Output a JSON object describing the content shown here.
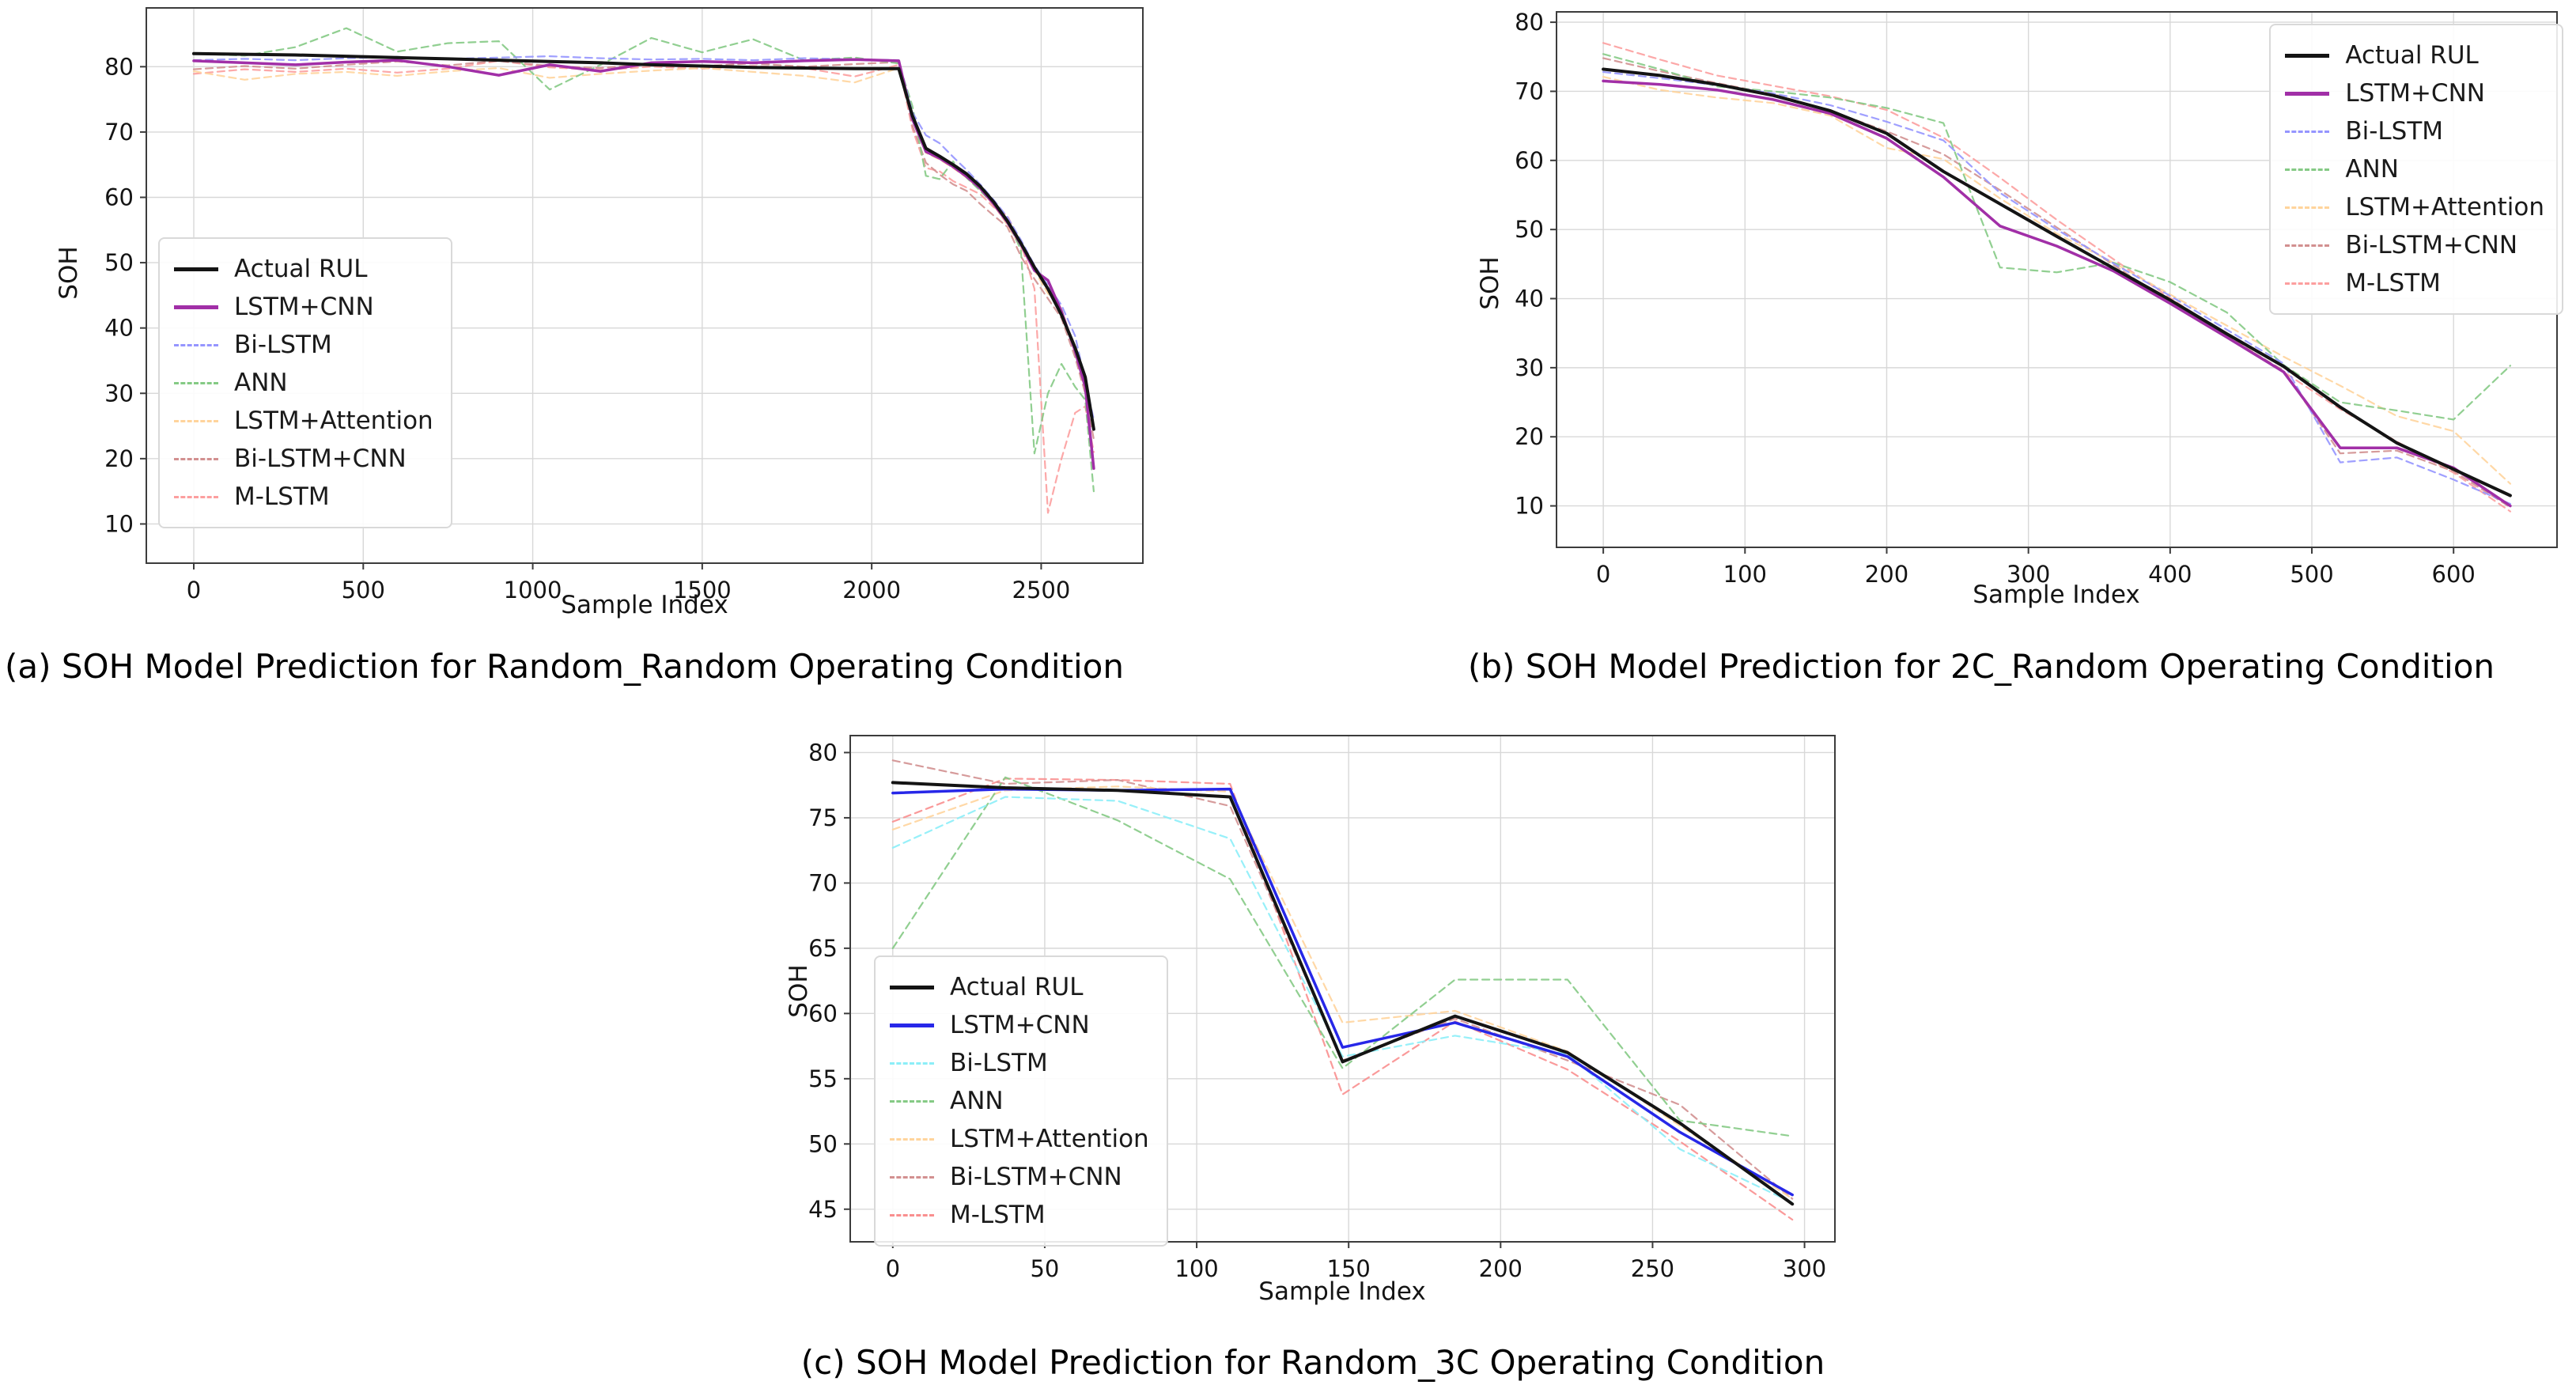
{
  "figure": {
    "background_color": "#ffffff",
    "grid_color": "#d8d8d8",
    "spine_color": "#3c3c3c",
    "text_color": "#141414"
  },
  "chart_data": [
    {
      "type": "line",
      "caption": "(a) SOH Model Prediction for Random_Random Operating Condition",
      "xlabel": "Sample Index",
      "ylabel": "SOH",
      "xlim": [
        -140,
        2800
      ],
      "ylim": [
        4,
        89
      ],
      "xticks": [
        0,
        500,
        1000,
        1500,
        2000,
        2500
      ],
      "yticks": [
        10,
        20,
        30,
        40,
        50,
        60,
        70,
        80
      ],
      "grid": true,
      "legend_position": "lower-left",
      "x": [
        0,
        150,
        300,
        450,
        600,
        750,
        900,
        1050,
        1200,
        1350,
        1500,
        1650,
        1800,
        1950,
        2080,
        2120,
        2160,
        2200,
        2240,
        2280,
        2320,
        2360,
        2400,
        2440,
        2480,
        2520,
        2560,
        2600,
        2630,
        2655
      ],
      "series": [
        {
          "name": "Actual RUL",
          "color": "#141414",
          "style": "solid",
          "width": 4,
          "values": [
            82.0,
            81.9,
            81.8,
            81.6,
            81.4,
            81.2,
            81.0,
            80.8,
            80.6,
            80.3,
            80.1,
            79.9,
            79.8,
            79.7,
            79.7,
            72.5,
            67.5,
            66.3,
            65.0,
            63.6,
            61.7,
            59.3,
            56.4,
            53.0,
            49.3,
            46.0,
            42.0,
            37.0,
            32.5,
            24.5
          ]
        },
        {
          "name": "LSTM+CNN",
          "color": "#a12fa7",
          "style": "solid",
          "width": 3.5,
          "values": [
            80.9,
            80.6,
            80.3,
            80.7,
            81.0,
            80.0,
            78.7,
            80.3,
            79.3,
            80.6,
            80.8,
            80.6,
            80.9,
            81.1,
            80.9,
            72.0,
            67.0,
            66.0,
            64.7,
            63.2,
            61.4,
            59.0,
            56.2,
            52.8,
            48.8,
            47.3,
            42.5,
            36.5,
            31.0,
            18.5
          ]
        },
        {
          "name": "Bi-LSTM",
          "color": "#9595ff",
          "style": "dashed",
          "width": 2.2,
          "values": [
            81.0,
            81.2,
            81.0,
            81.3,
            81.5,
            81.2,
            81.4,
            81.6,
            81.3,
            81.1,
            81.2,
            81.0,
            81.3,
            81.1,
            81.0,
            73.0,
            69.5,
            68.3,
            66.2,
            64.2,
            62.0,
            59.6,
            57.0,
            53.5,
            49.6,
            46.5,
            43.5,
            38.8,
            32.0,
            26.0
          ]
        },
        {
          "name": "ANN",
          "color": "#85ca85",
          "style": "dashed",
          "width": 2.2,
          "values": [
            82.0,
            81.7,
            83.0,
            85.9,
            82.3,
            83.6,
            83.9,
            76.5,
            80.3,
            84.4,
            82.2,
            84.2,
            81.0,
            81.4,
            80.5,
            74.0,
            63.3,
            62.8,
            65.5,
            63.0,
            61.0,
            59.0,
            56.5,
            52.0,
            20.8,
            30.0,
            34.5,
            31.0,
            29.0,
            15.0
          ]
        },
        {
          "name": "LSTM+Attention",
          "color": "#ffd49c",
          "style": "dashed",
          "width": 2.2,
          "values": [
            79.3,
            78.0,
            78.9,
            79.2,
            78.6,
            79.3,
            79.8,
            78.3,
            78.9,
            79.4,
            79.8,
            79.2,
            78.6,
            77.6,
            79.8,
            72.0,
            66.8,
            65.8,
            64.5,
            63.0,
            61.2,
            58.8,
            55.8,
            52.3,
            48.8,
            45.3,
            43.0,
            36.5,
            30.5,
            24.0
          ]
        },
        {
          "name": "Bi-LSTM+CNN",
          "color": "#d29090",
          "style": "dashed",
          "width": 2.2,
          "values": [
            79.6,
            80.1,
            79.7,
            80.3,
            80.8,
            80.2,
            80.9,
            80.1,
            79.8,
            80.4,
            80.1,
            80.5,
            80.0,
            80.4,
            80.7,
            71.0,
            65.3,
            63.5,
            62.0,
            61.0,
            59.0,
            57.2,
            55.5,
            51.0,
            47.5,
            44.5,
            41.5,
            35.5,
            30.0,
            23.0
          ]
        },
        {
          "name": "M-LSTM",
          "color": "#fc9f9f",
          "style": "dashed",
          "width": 2.2,
          "values": [
            78.9,
            79.6,
            79.2,
            79.7,
            79.1,
            79.7,
            80.9,
            79.9,
            79.5,
            80.0,
            79.7,
            80.1,
            79.8,
            78.5,
            80.3,
            70.5,
            64.5,
            64.0,
            62.5,
            61.5,
            60.5,
            58.5,
            57.2,
            53.0,
            46.0,
            11.7,
            20.0,
            27.0,
            28.0,
            21.0
          ]
        }
      ]
    },
    {
      "type": "line",
      "caption": "(b) SOH Model Prediction for 2C_Random Operating Condition",
      "xlabel": "Sample Index",
      "ylabel": "SOH",
      "xlim": [
        -33,
        673
      ],
      "ylim": [
        4,
        81.5
      ],
      "xticks": [
        0,
        100,
        200,
        300,
        400,
        500,
        600
      ],
      "yticks": [
        10,
        20,
        30,
        40,
        50,
        60,
        70,
        80
      ],
      "grid": true,
      "legend_position": "upper-right",
      "x": [
        0,
        40,
        80,
        120,
        160,
        200,
        240,
        280,
        320,
        360,
        400,
        440,
        480,
        520,
        560,
        600,
        640
      ],
      "series": [
        {
          "name": "Actual RUL",
          "color": "#141414",
          "style": "solid",
          "width": 4,
          "values": [
            73.2,
            72.3,
            71.0,
            69.4,
            67.2,
            63.9,
            58.4,
            53.7,
            49.0,
            44.4,
            39.8,
            34.9,
            30.2,
            24.3,
            19.1,
            15.3,
            11.5
          ]
        },
        {
          "name": "LSTM+CNN",
          "color": "#a12fa7",
          "style": "solid",
          "width": 3.5,
          "values": [
            71.5,
            71.0,
            70.2,
            68.8,
            66.8,
            63.2,
            57.6,
            50.5,
            47.6,
            44.0,
            39.3,
            34.4,
            29.4,
            18.4,
            18.4,
            15.5,
            10.0
          ]
        },
        {
          "name": "Bi-LSTM",
          "color": "#9595ff",
          "style": "dashed",
          "width": 2.2,
          "values": [
            72.8,
            71.9,
            70.9,
            69.7,
            68.0,
            65.6,
            62.9,
            55.3,
            50.0,
            45.1,
            40.4,
            35.5,
            30.6,
            16.3,
            17.0,
            13.8,
            10.3
          ]
        },
        {
          "name": "ANN",
          "color": "#85ca85",
          "style": "dashed",
          "width": 2.2,
          "values": [
            75.4,
            73.2,
            70.7,
            70.0,
            69.1,
            67.6,
            65.4,
            44.5,
            43.8,
            45.2,
            42.4,
            38.0,
            30.4,
            25.0,
            23.8,
            22.5,
            30.3
          ]
        },
        {
          "name": "LSTM+Attention",
          "color": "#ffd49c",
          "style": "dashed",
          "width": 2.2,
          "values": [
            72.1,
            70.2,
            69.1,
            68.3,
            66.5,
            61.8,
            60.2,
            54.5,
            49.4,
            45.2,
            40.6,
            36.1,
            31.6,
            27.4,
            23.0,
            20.8,
            13.2
          ]
        },
        {
          "name": "Bi-LSTM+CNN",
          "color": "#d29090",
          "style": "dashed",
          "width": 2.2,
          "values": [
            74.8,
            72.9,
            71.2,
            69.6,
            67.2,
            64.2,
            60.9,
            55.7,
            50.3,
            44.9,
            39.4,
            34.5,
            29.6,
            17.6,
            18.0,
            15.0,
            9.8
          ]
        },
        {
          "name": "M-LSTM",
          "color": "#fc9f9f",
          "style": "dashed",
          "width": 2.2,
          "values": [
            77.0,
            74.6,
            72.3,
            70.8,
            69.3,
            67.3,
            63.3,
            57.5,
            51.4,
            45.7,
            40.1,
            34.7,
            29.4,
            24.0,
            19.3,
            14.8,
            9.2
          ]
        }
      ]
    },
    {
      "type": "line",
      "caption": "(c) SOH Model Prediction for Random_3C Operating Condition",
      "xlabel": "Sample Index",
      "ylabel": "SOH",
      "xlim": [
        -14,
        310
      ],
      "ylim": [
        42.5,
        81.3
      ],
      "xticks": [
        0,
        50,
        100,
        150,
        200,
        250,
        300
      ],
      "yticks": [
        45,
        50,
        55,
        60,
        65,
        70,
        75,
        80
      ],
      "grid": true,
      "legend_position": "lower-left",
      "x": [
        0,
        37,
        74,
        111,
        148,
        185,
        222,
        259,
        296
      ],
      "series": [
        {
          "name": "Actual RUL",
          "color": "#141414",
          "style": "solid",
          "width": 4,
          "values": [
            77.7,
            77.3,
            77.1,
            76.6,
            56.3,
            59.8,
            57.0,
            51.6,
            45.4
          ]
        },
        {
          "name": "LSTM+CNN",
          "color": "#2727e8",
          "style": "solid",
          "width": 3.5,
          "values": [
            76.9,
            77.2,
            77.1,
            77.2,
            57.4,
            59.3,
            56.7,
            50.9,
            46.1
          ]
        },
        {
          "name": "Bi-LSTM",
          "color": "#8ceef8",
          "style": "dashed",
          "width": 2.2,
          "values": [
            72.7,
            76.6,
            76.3,
            73.4,
            56.7,
            58.3,
            56.9,
            49.6,
            45.5
          ]
        },
        {
          "name": "ANN",
          "color": "#85ca85",
          "style": "dashed",
          "width": 2.2,
          "values": [
            65.0,
            78.1,
            74.8,
            70.3,
            55.8,
            62.6,
            62.6,
            51.8,
            50.6
          ]
        },
        {
          "name": "LSTM+Attention",
          "color": "#ffd49c",
          "style": "dashed",
          "width": 2.2,
          "values": [
            74.1,
            77.1,
            77.4,
            77.0,
            59.3,
            60.2,
            57.1,
            51.4,
            45.8
          ]
        },
        {
          "name": "Bi-LSTM+CNN",
          "color": "#d29090",
          "style": "dashed",
          "width": 2.2,
          "values": [
            79.4,
            77.6,
            77.9,
            75.9,
            56.4,
            59.6,
            56.4,
            53.0,
            45.8
          ]
        },
        {
          "name": "M-LSTM",
          "color": "#f98f8f",
          "style": "dashed",
          "width": 2.2,
          "values": [
            74.7,
            78.0,
            77.9,
            77.6,
            53.8,
            59.4,
            55.7,
            50.2,
            44.2
          ]
        }
      ]
    }
  ]
}
